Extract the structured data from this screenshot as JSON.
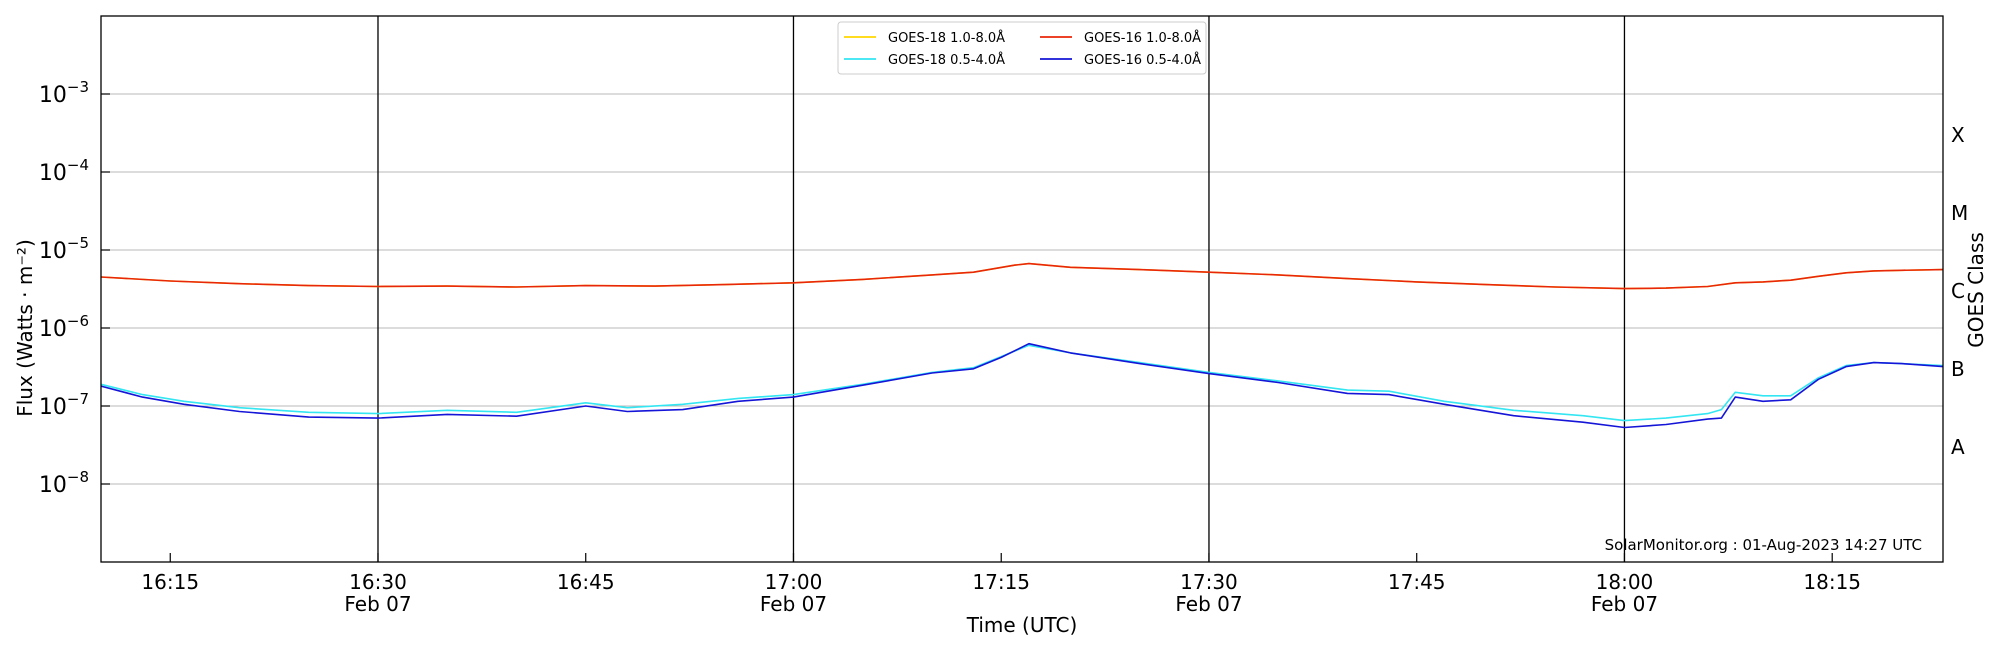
{
  "chart_data": {
    "type": "line",
    "xlabel": "Time (UTC)",
    "ylabel": "Flux (Watts · m⁻²)",
    "y2label": "GOES Class",
    "yscale": "log",
    "x_unit": "time HH:MM, 2023-02-07",
    "xlim": [
      "16:10",
      "18:23"
    ],
    "ylim": [
      1e-09,
      0.01
    ],
    "grid": "horizontal",
    "legend_placement": "top-center",
    "x_ticks": [
      {
        "value": "16:15",
        "label": "16:15",
        "date": ""
      },
      {
        "value": "16:30",
        "label": "16:30",
        "date": "Feb 07"
      },
      {
        "value": "16:45",
        "label": "16:45",
        "date": ""
      },
      {
        "value": "17:00",
        "label": "17:00",
        "date": "Feb 07"
      },
      {
        "value": "17:15",
        "label": "17:15",
        "date": ""
      },
      {
        "value": "17:30",
        "label": "17:30",
        "date": "Feb 07"
      },
      {
        "value": "17:45",
        "label": "17:45",
        "date": ""
      },
      {
        "value": "18:00",
        "label": "18:00",
        "date": "Feb 07"
      },
      {
        "value": "18:15",
        "label": "18:15",
        "date": ""
      }
    ],
    "vlines": [
      "16:30",
      "17:00",
      "17:30",
      "18:00"
    ],
    "y_ticks": [
      {
        "value": 1e-08,
        "base": "10",
        "exp": "−8"
      },
      {
        "value": 1e-07,
        "base": "10",
        "exp": "−7"
      },
      {
        "value": 1e-06,
        "base": "10",
        "exp": "−6"
      },
      {
        "value": 1e-05,
        "base": "10",
        "exp": "−5"
      },
      {
        "value": 0.0001,
        "base": "10",
        "exp": "−4"
      },
      {
        "value": 0.001,
        "base": "10",
        "exp": "−3"
      }
    ],
    "goes_classes": [
      {
        "label": "A",
        "value": 3e-08
      },
      {
        "label": "B",
        "value": 3e-07
      },
      {
        "label": "C",
        "value": 3e-06
      },
      {
        "label": "M",
        "value": 3e-05
      },
      {
        "label": "X",
        "value": 0.0003
      }
    ],
    "series": [
      {
        "name": "GOES-18 1.0-8.0Å",
        "color": "#ffd700",
        "x": [
          "16:10",
          "16:15",
          "16:20",
          "16:25",
          "16:30",
          "16:35",
          "16:40",
          "16:45",
          "16:50",
          "16:55",
          "17:00",
          "17:05",
          "17:10",
          "17:13",
          "17:16",
          "17:17",
          "17:20",
          "17:25",
          "17:30",
          "17:35",
          "17:40",
          "17:45",
          "17:50",
          "17:55",
          "18:00",
          "18:03",
          "18:06",
          "18:08",
          "18:10",
          "18:12",
          "18:14",
          "18:16",
          "18:18",
          "18:20",
          "18:23"
        ],
        "values": [
          4.5e-06,
          4e-06,
          3.7e-06,
          3.5e-06,
          3.4e-06,
          3.45e-06,
          3.35e-06,
          3.5e-06,
          3.45e-06,
          3.6e-06,
          3.8e-06,
          4.2e-06,
          4.8e-06,
          5.2e-06,
          6.4e-06,
          6.7e-06,
          6e-06,
          5.6e-06,
          5.2e-06,
          4.8e-06,
          4.3e-06,
          3.9e-06,
          3.6e-06,
          3.35e-06,
          3.2e-06,
          3.25e-06,
          3.4e-06,
          3.8e-06,
          3.9e-06,
          4.1e-06,
          4.6e-06,
          5.1e-06,
          5.4e-06,
          5.5e-06,
          5.6e-06
        ]
      },
      {
        "name": "GOES-16 1.0-8.0Å",
        "color": "#e8270a",
        "x": [
          "16:10",
          "16:15",
          "16:20",
          "16:25",
          "16:30",
          "16:35",
          "16:40",
          "16:45",
          "16:50",
          "16:55",
          "17:00",
          "17:05",
          "17:10",
          "17:13",
          "17:16",
          "17:17",
          "17:20",
          "17:25",
          "17:30",
          "17:35",
          "17:40",
          "17:45",
          "17:50",
          "17:55",
          "18:00",
          "18:03",
          "18:06",
          "18:08",
          "18:10",
          "18:12",
          "18:14",
          "18:16",
          "18:18",
          "18:20",
          "18:23"
        ],
        "values": [
          4.5e-06,
          4e-06,
          3.7e-06,
          3.5e-06,
          3.4e-06,
          3.45e-06,
          3.35e-06,
          3.5e-06,
          3.45e-06,
          3.6e-06,
          3.8e-06,
          4.2e-06,
          4.8e-06,
          5.2e-06,
          6.4e-06,
          6.7e-06,
          6e-06,
          5.6e-06,
          5.2e-06,
          4.8e-06,
          4.3e-06,
          3.9e-06,
          3.6e-06,
          3.35e-06,
          3.2e-06,
          3.25e-06,
          3.4e-06,
          3.8e-06,
          3.9e-06,
          4.1e-06,
          4.6e-06,
          5.1e-06,
          5.4e-06,
          5.5e-06,
          5.6e-06
        ]
      },
      {
        "name": "GOES-18 0.5-4.0Å",
        "color": "#33e6f2",
        "x": [
          "16:10",
          "16:13",
          "16:16",
          "16:20",
          "16:25",
          "16:30",
          "16:35",
          "16:40",
          "16:45",
          "16:48",
          "16:52",
          "16:56",
          "17:00",
          "17:05",
          "17:10",
          "17:13",
          "17:15",
          "17:17",
          "17:20",
          "17:25",
          "17:30",
          "17:35",
          "17:40",
          "17:43",
          "17:47",
          "17:52",
          "17:57",
          "18:00",
          "18:03",
          "18:06",
          "18:07",
          "18:08",
          "18:10",
          "18:12",
          "18:14",
          "18:16",
          "18:18",
          "18:20",
          "18:23"
        ],
        "values": [
          1.9e-07,
          1.4e-07,
          1.15e-07,
          9.5e-08,
          8.3e-08,
          8e-08,
          8.8e-08,
          8.3e-08,
          1.1e-07,
          9.5e-08,
          1.05e-07,
          1.25e-07,
          1.4e-07,
          1.9e-07,
          2.7e-07,
          3.1e-07,
          4.3e-07,
          6e-07,
          4.8e-07,
          3.6e-07,
          2.7e-07,
          2.1e-07,
          1.6e-07,
          1.55e-07,
          1.15e-07,
          8.8e-08,
          7.5e-08,
          6.5e-08,
          7e-08,
          8e-08,
          9e-08,
          1.5e-07,
          1.35e-07,
          1.35e-07,
          2.3e-07,
          3.3e-07,
          3.6e-07,
          3.5e-07,
          3.3e-07
        ]
      },
      {
        "name": "GOES-16 0.5-4.0Å",
        "color": "#1515d8",
        "x": [
          "16:10",
          "16:13",
          "16:16",
          "16:20",
          "16:25",
          "16:30",
          "16:35",
          "16:40",
          "16:45",
          "16:48",
          "16:52",
          "16:56",
          "17:00",
          "17:05",
          "17:10",
          "17:13",
          "17:15",
          "17:17",
          "17:20",
          "17:25",
          "17:30",
          "17:35",
          "17:40",
          "17:43",
          "17:47",
          "17:52",
          "17:57",
          "18:00",
          "18:03",
          "18:06",
          "18:07",
          "18:08",
          "18:10",
          "18:12",
          "18:14",
          "18:16",
          "18:18",
          "18:20",
          "18:23"
        ],
        "values": [
          1.8e-07,
          1.3e-07,
          1.05e-07,
          8.5e-08,
          7.2e-08,
          7e-08,
          7.8e-08,
          7.4e-08,
          1e-07,
          8.5e-08,
          9e-08,
          1.15e-07,
          1.3e-07,
          1.85e-07,
          2.65e-07,
          3e-07,
          4.2e-07,
          6.3e-07,
          4.8e-07,
          3.5e-07,
          2.6e-07,
          2e-07,
          1.45e-07,
          1.4e-07,
          1.05e-07,
          7.5e-08,
          6.2e-08,
          5.3e-08,
          5.8e-08,
          6.8e-08,
          7e-08,
          1.3e-07,
          1.15e-07,
          1.2e-07,
          2.2e-07,
          3.2e-07,
          3.6e-07,
          3.5e-07,
          3.2e-07
        ]
      }
    ],
    "legend_order": [
      0,
      2,
      1,
      3
    ],
    "credit": "SolarMonitor.org : 01-Aug-2023 14:27 UTC"
  }
}
